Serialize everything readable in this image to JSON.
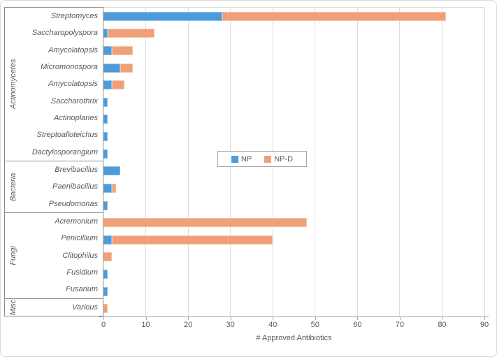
{
  "chart_data": {
    "type": "bar",
    "orientation": "horizontal",
    "stacked": true,
    "title": "",
    "xlabel": "# Approved Antibiotics",
    "ylabel": "",
    "xlim": [
      0,
      90
    ],
    "xticks": [
      0,
      10,
      20,
      30,
      40,
      50,
      60,
      70,
      80,
      90
    ],
    "grid": true,
    "legend_position": "inside-plot-center",
    "legend": {
      "np": "NP",
      "npd": "NP-D"
    },
    "colors": {
      "np_fill": "#4d9bd9",
      "np_border": "#8ec1e9",
      "npd_fill": "#f0a078",
      "npd_border": "#f6c5a4",
      "text": "#595959",
      "gridline": "#dcdcdc",
      "axis_line": "#a6a6a6",
      "category_box_border": "#8c8c8c"
    },
    "series_names": [
      "NP",
      "NP-D"
    ],
    "groups": [
      {
        "group": "Actinomycetes",
        "items": [
          {
            "label": "Streptomyces",
            "np": 28,
            "npd": 53
          },
          {
            "label": "Saccharopolyspora",
            "np": 1,
            "npd": 11
          },
          {
            "label": "Amycolatopsis",
            "np": 2,
            "npd": 5
          },
          {
            "label": "Micromonospora",
            "np": 4,
            "npd": 3
          },
          {
            "label": "Amycolatopsis",
            "np": 2,
            "npd": 3
          },
          {
            "label": "Saccharothrix",
            "np": 1,
            "npd": 0
          },
          {
            "label": "Actinoplanes",
            "np": 1,
            "npd": 0
          },
          {
            "label": "Streptoalloteichus",
            "np": 1,
            "npd": 0
          },
          {
            "label": "Dactylosporangium",
            "np": 1,
            "npd": 0
          }
        ]
      },
      {
        "group": "Bacteria",
        "items": [
          {
            "label": "Brevibacillus",
            "np": 4,
            "npd": 0
          },
          {
            "label": "Paenibacillus",
            "np": 2,
            "npd": 1
          },
          {
            "label": "Pseudomonas",
            "np": 1,
            "npd": 0
          }
        ]
      },
      {
        "group": "Fungi",
        "items": [
          {
            "label": "Acremonium",
            "np": 0,
            "npd": 48
          },
          {
            "label": "Penicillium",
            "np": 2,
            "npd": 38
          },
          {
            "label": "Clitophilus",
            "np": 0,
            "npd": 2
          },
          {
            "label": "Fusidium",
            "np": 1,
            "npd": 0
          },
          {
            "label": "Fusarium",
            "np": 1,
            "npd": 0
          }
        ]
      },
      {
        "group": "Misc",
        "items": [
          {
            "label": "Various",
            "np": 0,
            "npd": 1
          }
        ]
      }
    ]
  }
}
